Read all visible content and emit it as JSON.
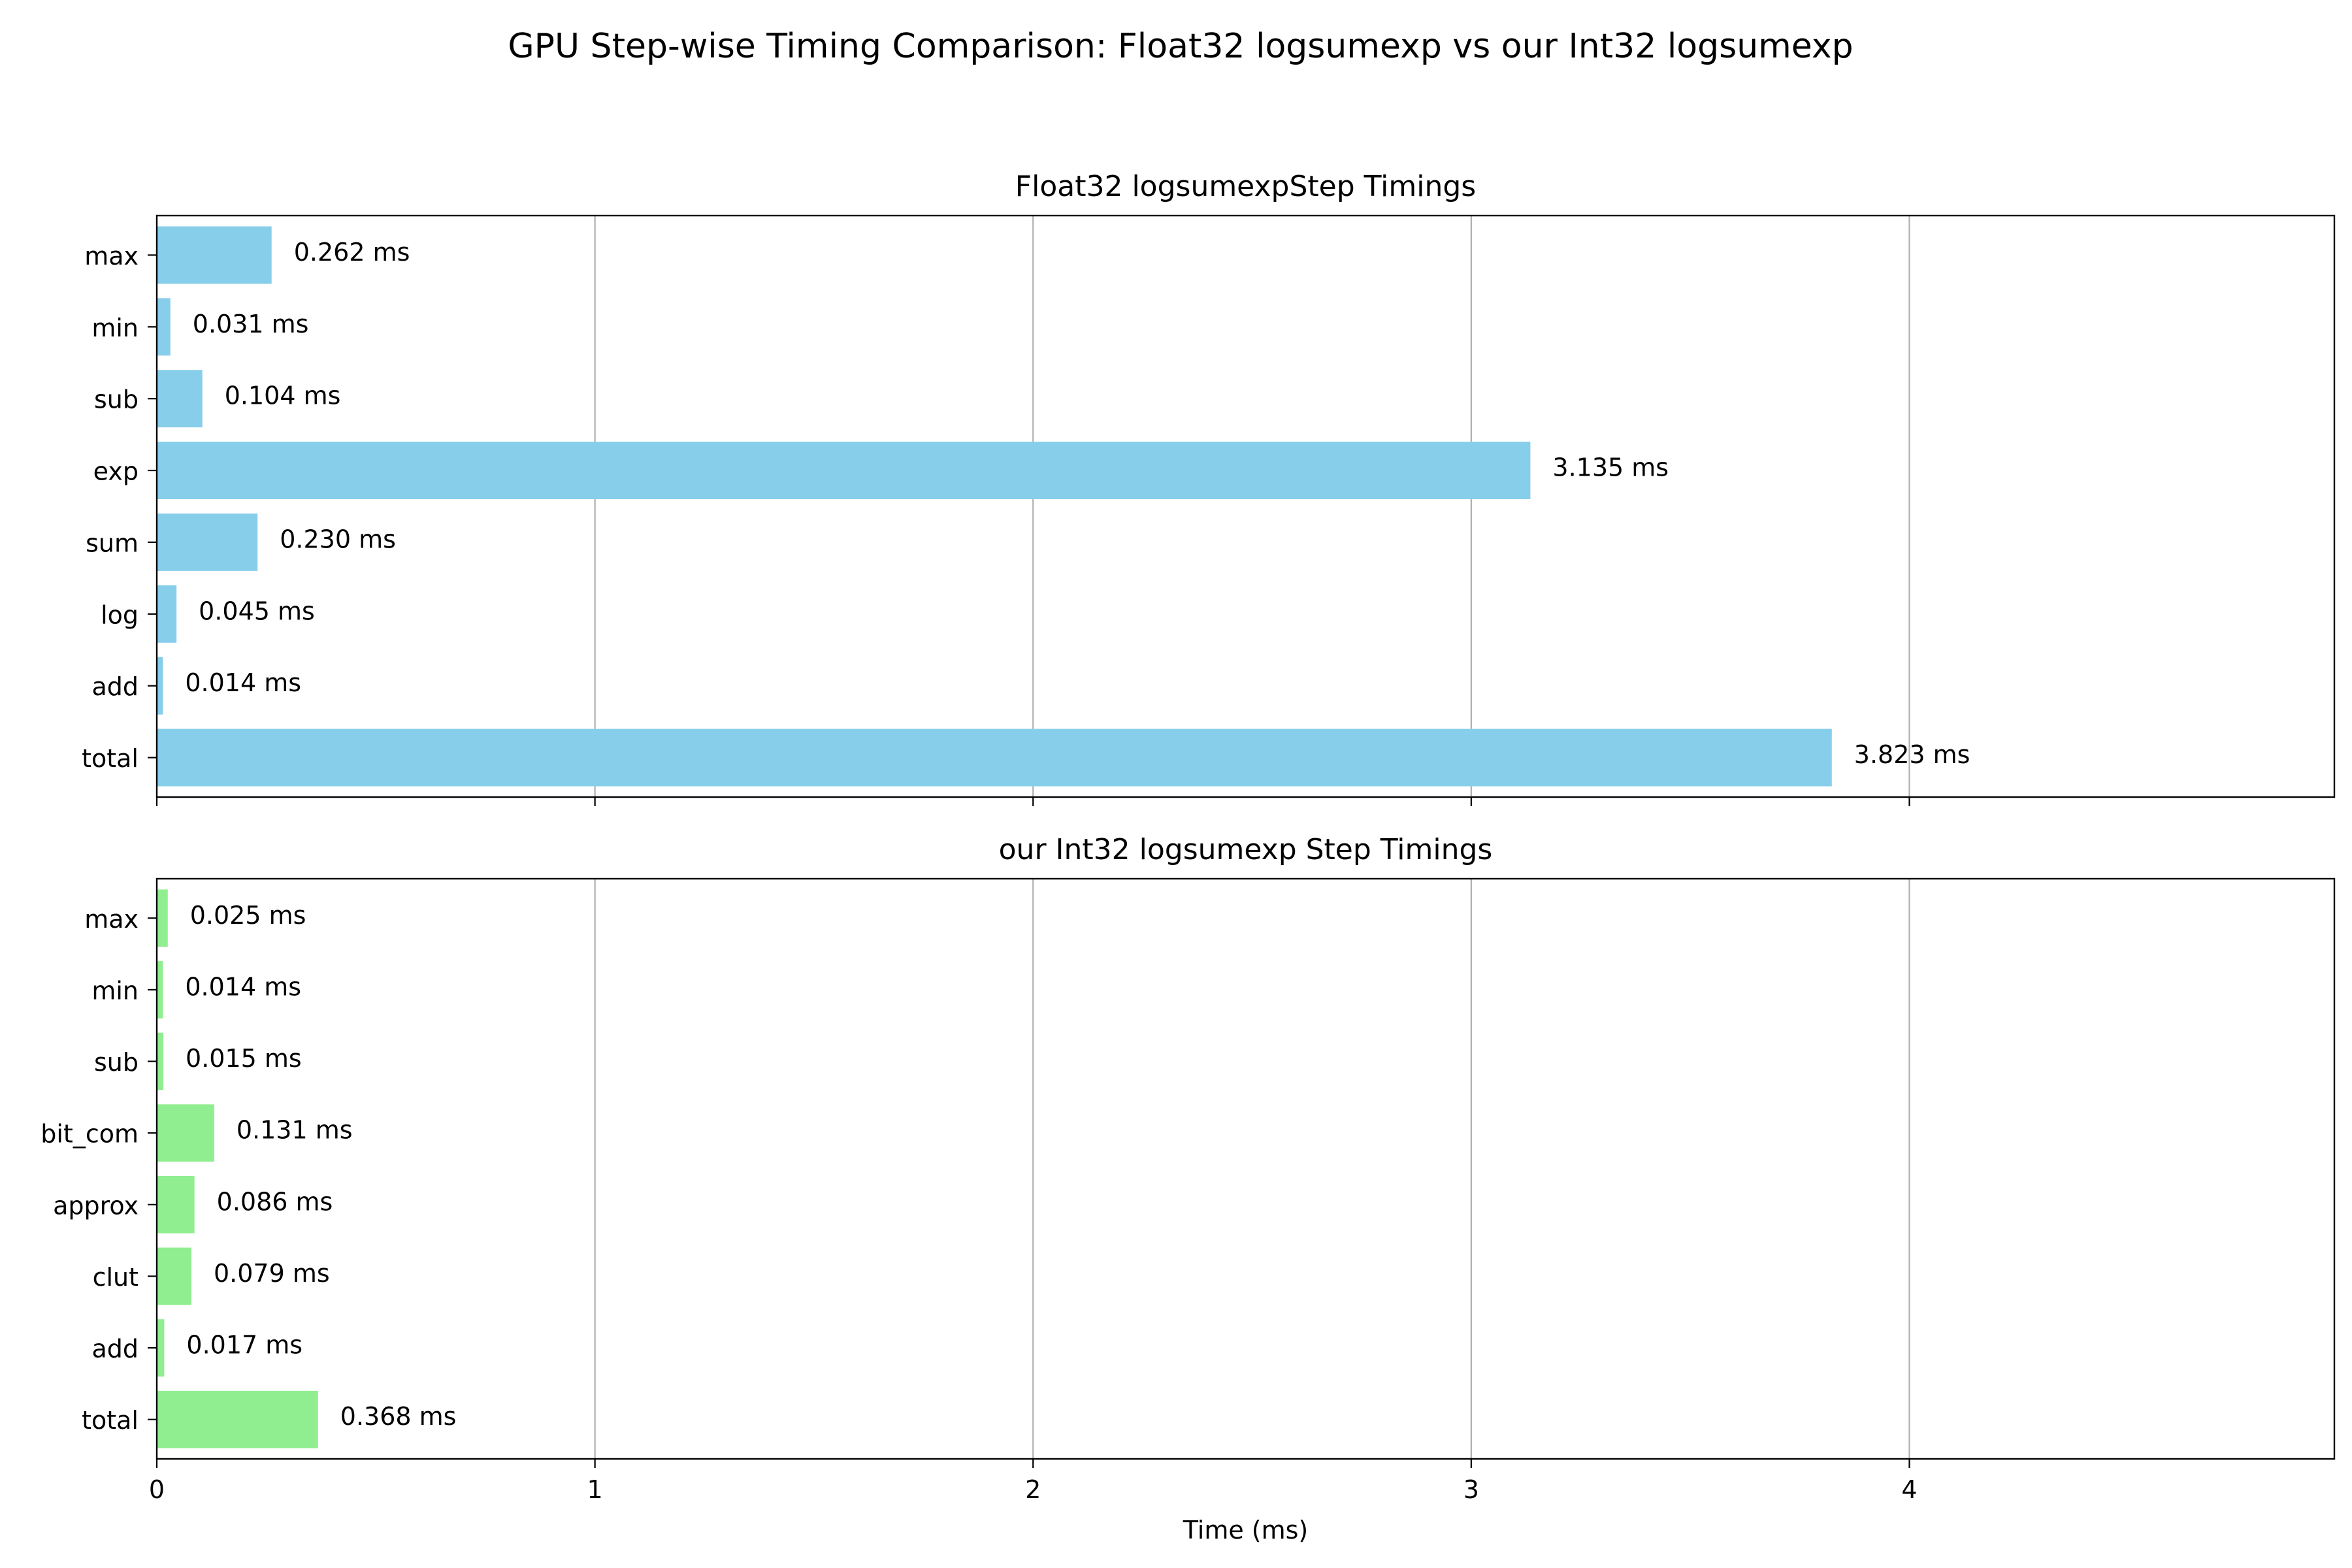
{
  "suptitle": "GPU Step-wise Timing Comparison: Float32 logsumexp vs our Int32 logsumexp",
  "chart_data": [
    {
      "type": "bar",
      "orientation": "horizontal",
      "title": "Float32 logsumexpStep Timings",
      "categories": [
        "max",
        "min",
        "sub",
        "exp",
        "sum",
        "log",
        "add",
        "total"
      ],
      "values": [
        0.262,
        0.031,
        0.104,
        3.135,
        0.23,
        0.045,
        0.014,
        3.823
      ],
      "data_labels": [
        "0.262 ms",
        "0.031 ms",
        "0.104 ms",
        "3.135 ms",
        "0.230 ms",
        "0.045 ms",
        "0.014 ms",
        "3.823 ms"
      ],
      "color": "#87CEEB",
      "xlim": [
        0,
        4.97
      ],
      "xticks": [
        0,
        1,
        2,
        3,
        4
      ],
      "xtick_labels_visible": false,
      "xlabel": "",
      "grid": "x"
    },
    {
      "type": "bar",
      "orientation": "horizontal",
      "title": "our Int32 logsumexp Step Timings",
      "categories": [
        "max",
        "min",
        "sub",
        "bit_com",
        "approx",
        "clut",
        "add",
        "total"
      ],
      "values": [
        0.025,
        0.014,
        0.015,
        0.131,
        0.086,
        0.079,
        0.017,
        0.368
      ],
      "data_labels": [
        "0.025 ms",
        "0.014 ms",
        "0.015 ms",
        "0.131 ms",
        "0.086 ms",
        "0.079 ms",
        "0.017 ms",
        "0.368 ms"
      ],
      "color": "#90EE90",
      "xlim": [
        0,
        4.97
      ],
      "xticks": [
        0,
        1,
        2,
        3,
        4
      ],
      "xtick_labels_visible": true,
      "xlabel": "Time (ms)",
      "grid": "x"
    }
  ]
}
